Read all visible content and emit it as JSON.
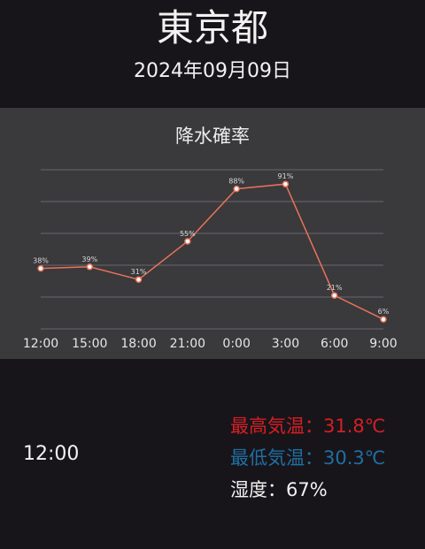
{
  "header": {
    "city": "東京都",
    "date": "2024年09月09日"
  },
  "chart_data": {
    "type": "line",
    "title": "降水確率",
    "categories": [
      "12:00",
      "15:00",
      "18:00",
      "21:00",
      "0:00",
      "3:00",
      "6:00",
      "9:00"
    ],
    "series": [
      {
        "values": [
          38,
          39,
          31,
          55,
          88,
          91,
          21,
          6
        ]
      }
    ],
    "data_labels": [
      "38%",
      "39%",
      "31%",
      "55%",
      "88%",
      "91%",
      "21%",
      "6%"
    ],
    "ylim": [
      0,
      100
    ],
    "grid": true,
    "line_color": "#e8735a"
  },
  "detail": {
    "hour": "12:00",
    "high_temp": "最高気温：31.8℃",
    "low_temp": "最低気温：30.3℃",
    "humidity": "湿度：67%"
  },
  "colors": {
    "background": "#17151a",
    "panel": "#3a393c",
    "high": "#d51f24",
    "low": "#1f6fa3"
  }
}
